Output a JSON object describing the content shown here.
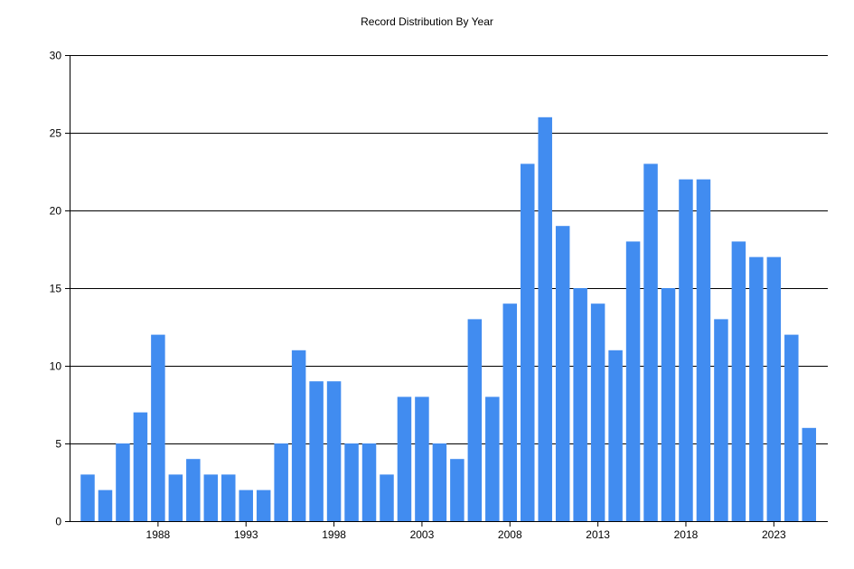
{
  "chart_data": {
    "type": "bar",
    "title": "Record Distribution By Year",
    "xlabel": "",
    "ylabel": "",
    "categories": [
      1984,
      1985,
      1986,
      1987,
      1988,
      1989,
      1990,
      1991,
      1992,
      1993,
      1994,
      1995,
      1996,
      1997,
      1998,
      1999,
      2000,
      2001,
      2002,
      2003,
      2004,
      2005,
      2006,
      2007,
      2008,
      2009,
      2010,
      2011,
      2012,
      2013,
      2014,
      2015,
      2016,
      2017,
      2018,
      2019,
      2020,
      2021,
      2022,
      2023,
      2024,
      2025
    ],
    "values": [
      3,
      2,
      5,
      7,
      12,
      3,
      4,
      3,
      3,
      2,
      2,
      5,
      11,
      9,
      9,
      5,
      5,
      3,
      8,
      8,
      5,
      4,
      13,
      8,
      14,
      23,
      26,
      19,
      15,
      14,
      11,
      18,
      23,
      15,
      22,
      22,
      13,
      18,
      17,
      17,
      12,
      6
    ],
    "x_tick_labels": [
      "1988",
      "1993",
      "1998",
      "2003",
      "2008",
      "2013",
      "2018",
      "2023"
    ],
    "y_tick_labels": [
      "0",
      "5",
      "10",
      "15",
      "20",
      "25",
      "30"
    ],
    "ylim": [
      0,
      30
    ],
    "y_ticks": [
      0,
      5,
      10,
      15,
      20,
      25,
      30
    ],
    "grid": true,
    "bar_color": "#418CF0",
    "gridline_color": "#000000"
  }
}
